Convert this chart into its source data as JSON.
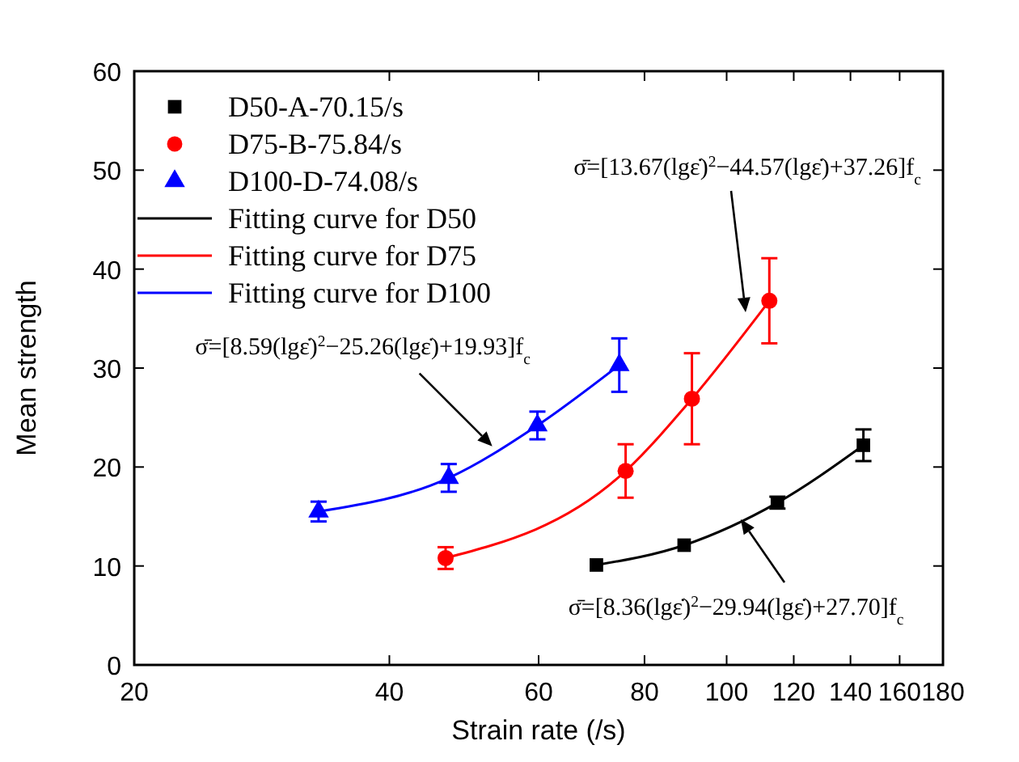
{
  "chart_data": {
    "type": "scatter",
    "log": "x",
    "xlabel": "Strain rate (/s)",
    "ylabel": "Mean strength",
    "xlim": [
      20,
      180
    ],
    "xticks": [
      20,
      40,
      60,
      80,
      100,
      120,
      140,
      160,
      180
    ],
    "ylim": [
      0,
      60
    ],
    "yticks": [
      0,
      10,
      20,
      30,
      40,
      50,
      60
    ],
    "grid": false,
    "legend": "top left",
    "series": [
      {
        "name": "D50-A-70.15/s",
        "type": "scatter",
        "marker": "square",
        "color": "#000000",
        "x": [
          70.2,
          89.1,
          114.8,
          145
        ],
        "values": [
          10.1,
          12.1,
          16.4,
          22.2
        ],
        "errors": [
          null,
          null,
          0.6,
          1.6
        ]
      },
      {
        "name": "D75-B-75.84/s",
        "type": "scatter",
        "marker": "circle",
        "color": "#ff0000",
        "x": [
          46.6,
          76.0,
          91.0,
          112.3
        ],
        "values": [
          10.8,
          19.6,
          26.9,
          36.8
        ],
        "errors": [
          1.1,
          2.7,
          4.6,
          4.3
        ]
      },
      {
        "name": "D100-D-74.08/s",
        "marker": "triangle",
        "color": "#0000ff",
        "x": [
          33.0,
          47.0,
          59.8,
          74.7
        ],
        "values": [
          15.5,
          18.9,
          24.2,
          30.3
        ],
        "errors": [
          1.0,
          1.4,
          1.4,
          2.7
        ]
      },
      {
        "name": "Fitting curve for D50",
        "type": "line",
        "marker": "none",
        "line_style": "solid",
        "color": "#000000",
        "x": [
          70.2,
          89.1,
          114.8,
          145
        ],
        "values": [
          10.1,
          12.1,
          16.4,
          22.2
        ]
      },
      {
        "name": "Fitting curve for D75",
        "type": "line",
        "marker": "none",
        "line_style": "solid",
        "color": "#ff0000",
        "x": [
          46.6,
          76.0,
          91.0,
          112.3
        ],
        "values": [
          10.8,
          19.6,
          26.9,
          36.8
        ]
      },
      {
        "name": "Fitting curve for D100",
        "type": "line",
        "marker": "none",
        "line_style": "solid",
        "color": "#0000ff",
        "x": [
          33.0,
          47.0,
          59.8,
          74.7
        ],
        "values": [
          15.5,
          18.9,
          24.2,
          30.3
        ]
      }
    ],
    "annotations": [
      "σ̄=[13.67(lgε̇)$^{2}$−44.57(lgε̇)+37.26]f$_{c}$",
      {
        "text": "σ̄=[8.59(lgε̇)$^{2}$−25.26(lgε̇)+19.93]f$_{c}$",
        "x": 52.9,
        "y": 22.1
      },
      "σ̄=[8.36(lgε̇)$^{2}$−29.94(lgε̇)+27.70]f$_{c}$"
    ]
  }
}
